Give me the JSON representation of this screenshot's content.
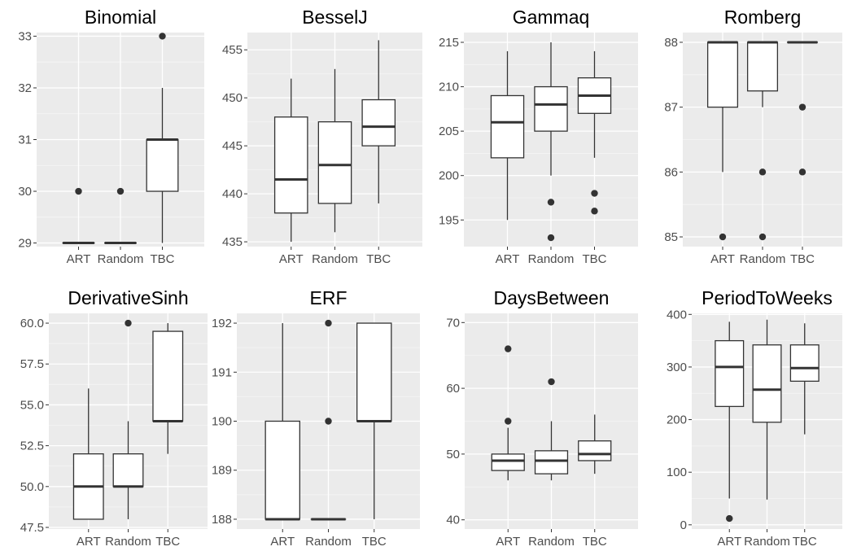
{
  "chart_data": [
    {
      "type": "boxplot",
      "title": "Binomial",
      "categories": [
        "ART",
        "Random",
        "TBC"
      ],
      "ylim": [
        28.93,
        33.07
      ],
      "yticks": [
        29,
        30,
        31,
        32,
        33
      ],
      "ytick_labels": [
        "29",
        "30",
        "31",
        "32",
        "33"
      ],
      "boxes": [
        {
          "category": "ART",
          "min": 29,
          "q1": 29,
          "median": 29,
          "q3": 29,
          "max": 29,
          "outliers": [
            30
          ]
        },
        {
          "category": "Random",
          "min": 29,
          "q1": 29,
          "median": 29,
          "q3": 29,
          "max": 29,
          "outliers": [
            30
          ]
        },
        {
          "category": "TBC",
          "min": 29,
          "q1": 30,
          "median": 31,
          "q3": 31,
          "max": 32,
          "outliers": [
            33
          ]
        }
      ]
    },
    {
      "type": "boxplot",
      "title": "BesselJ",
      "categories": [
        "ART",
        "Random",
        "TBC"
      ],
      "ylim": [
        434.5,
        456.8
      ],
      "yticks": [
        435,
        440,
        445,
        450,
        455
      ],
      "ytick_labels": [
        "435",
        "440",
        "445",
        "450",
        "455"
      ],
      "boxes": [
        {
          "category": "ART",
          "min": 435,
          "q1": 438,
          "median": 441.5,
          "q3": 448,
          "max": 452,
          "outliers": []
        },
        {
          "category": "Random",
          "min": 436,
          "q1": 439,
          "median": 443,
          "q3": 447.5,
          "max": 453,
          "outliers": []
        },
        {
          "category": "TBC",
          "min": 439,
          "q1": 445,
          "median": 447,
          "q3": 449.8,
          "max": 456,
          "outliers": []
        }
      ]
    },
    {
      "type": "boxplot",
      "title": "Gammaq",
      "categories": [
        "ART",
        "Random",
        "TBC"
      ],
      "ylim": [
        192.0,
        216.1
      ],
      "yticks": [
        195,
        200,
        205,
        210,
        215
      ],
      "ytick_labels": [
        "195",
        "200",
        "205",
        "210",
        "215"
      ],
      "boxes": [
        {
          "category": "ART",
          "min": 195,
          "q1": 202,
          "median": 206,
          "q3": 209,
          "max": 214,
          "outliers": []
        },
        {
          "category": "Random",
          "min": 200,
          "q1": 205,
          "median": 208,
          "q3": 210,
          "max": 215,
          "outliers": [
            197,
            193
          ]
        },
        {
          "category": "TBC",
          "min": 202,
          "q1": 207,
          "median": 209,
          "q3": 211,
          "max": 214,
          "outliers": [
            198,
            196
          ]
        }
      ]
    },
    {
      "type": "boxplot",
      "title": "Romberg",
      "categories": [
        "ART",
        "Random",
        "TBC"
      ],
      "ylim": [
        84.85,
        88.15
      ],
      "yticks": [
        85,
        86,
        87,
        88
      ],
      "ytick_labels": [
        "85",
        "86",
        "87",
        "88"
      ],
      "boxes": [
        {
          "category": "ART",
          "min": 86,
          "q1": 87,
          "median": 88,
          "q3": 88,
          "max": 88,
          "outliers": [
            85
          ]
        },
        {
          "category": "Random",
          "min": 87,
          "q1": 87.25,
          "median": 88,
          "q3": 88,
          "max": 88,
          "outliers": [
            86,
            85
          ]
        },
        {
          "category": "TBC",
          "min": 88,
          "q1": 88,
          "median": 88,
          "q3": 88,
          "max": 88,
          "outliers": [
            87,
            86
          ]
        }
      ]
    },
    {
      "type": "boxplot",
      "title": "DerivativeSinh",
      "categories": [
        "ART",
        "Random",
        "TBC"
      ],
      "ylim": [
        47.4,
        60.6
      ],
      "yticks": [
        47.5,
        50.0,
        52.5,
        55.0,
        57.5,
        60.0
      ],
      "ytick_labels": [
        "47.5",
        "50.0",
        "52.5",
        "55.0",
        "57.5",
        "60.0"
      ],
      "boxes": [
        {
          "category": "ART",
          "min": 48,
          "q1": 48,
          "median": 50,
          "q3": 52,
          "max": 56,
          "outliers": []
        },
        {
          "category": "Random",
          "min": 48,
          "q1": 50,
          "median": 50,
          "q3": 52,
          "max": 54,
          "outliers": [
            60
          ]
        },
        {
          "category": "TBC",
          "min": 52,
          "q1": 54,
          "median": 54,
          "q3": 59.5,
          "max": 60,
          "outliers": []
        }
      ]
    },
    {
      "type": "boxplot",
      "title": "ERF",
      "categories": [
        "ART",
        "Random",
        "TBC"
      ],
      "ylim": [
        187.8,
        192.2
      ],
      "yticks": [
        188,
        189,
        190,
        191,
        192
      ],
      "ytick_labels": [
        "188",
        "189",
        "190",
        "191",
        "192"
      ],
      "boxes": [
        {
          "category": "ART",
          "min": 188,
          "q1": 188,
          "median": 188,
          "q3": 190,
          "max": 192,
          "outliers": []
        },
        {
          "category": "Random",
          "min": 188,
          "q1": 188,
          "median": 188,
          "q3": 188,
          "max": 188,
          "outliers": [
            192,
            190
          ]
        },
        {
          "category": "TBC",
          "min": 188,
          "q1": 190,
          "median": 190,
          "q3": 192,
          "max": 192,
          "outliers": []
        }
      ]
    },
    {
      "type": "boxplot",
      "title": "DaysBetween",
      "categories": [
        "ART",
        "Random",
        "TBC"
      ],
      "ylim": [
        38.6,
        71.4
      ],
      "yticks": [
        40,
        50,
        60,
        70
      ],
      "ytick_labels": [
        "40",
        "50",
        "60",
        "70"
      ],
      "boxes": [
        {
          "category": "ART",
          "min": 46,
          "q1": 47.5,
          "median": 49,
          "q3": 50,
          "max": 54,
          "outliers": [
            66,
            55
          ]
        },
        {
          "category": "Random",
          "min": 46,
          "q1": 47,
          "median": 49,
          "q3": 50.5,
          "max": 55,
          "outliers": [
            61
          ]
        },
        {
          "category": "TBC",
          "min": 47,
          "q1": 49,
          "median": 50,
          "q3": 52,
          "max": 56,
          "outliers": []
        }
      ]
    },
    {
      "type": "boxplot",
      "title": "PeriodToWeeks",
      "categories": [
        "ART",
        "Random",
        "TBC"
      ],
      "ylim": [
        -8,
        402
      ],
      "yticks": [
        0,
        100,
        200,
        300,
        400
      ],
      "ytick_labels": [
        "0",
        "100",
        "200",
        "300",
        "400"
      ],
      "boxes": [
        {
          "category": "ART",
          "min": 50,
          "q1": 225,
          "median": 300,
          "q3": 350,
          "max": 386,
          "outliers": [
            12
          ]
        },
        {
          "category": "Random",
          "min": 48,
          "q1": 195,
          "median": 257,
          "q3": 342,
          "max": 390,
          "outliers": []
        },
        {
          "category": "TBC",
          "min": 172,
          "q1": 273,
          "median": 298,
          "q3": 342,
          "max": 383,
          "outliers": []
        }
      ]
    }
  ],
  "colors": {
    "panel_background": "#ebebeb",
    "grid_major": "#ffffff",
    "grid_minor": "#f5f5f5",
    "box_fill": "#ffffff",
    "box_line": "#333333",
    "tick_text": "#4d4d4d",
    "title_text": "#000000"
  }
}
